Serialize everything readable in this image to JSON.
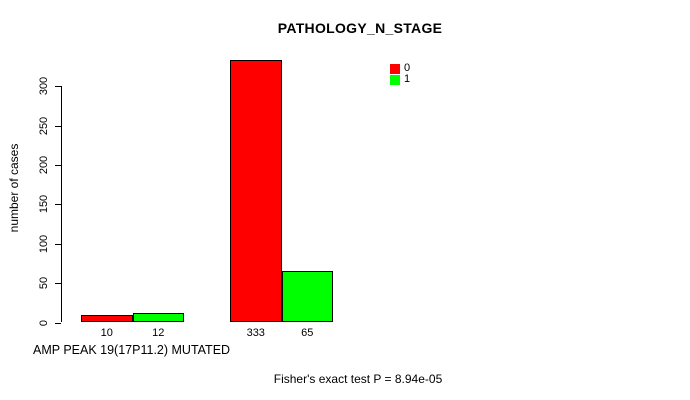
{
  "chart_data": {
    "type": "bar",
    "title": "PATHOLOGY_N_STAGE",
    "ylabel": "number of cases",
    "xlabel": "AMP PEAK 19(17P11.2) MUTATED",
    "annotation": "Fisher's exact test P = 8.94e-05",
    "yticks": [
      0,
      50,
      100,
      150,
      200,
      250,
      300
    ],
    "ylim": [
      0,
      333
    ],
    "grid": false,
    "categories": [
      "",
      ""
    ],
    "series": [
      {
        "name": "0",
        "color": "#ff0000",
        "values": [
          10,
          333
        ]
      },
      {
        "name": "1",
        "color": "#00ff00",
        "values": [
          12,
          65
        ]
      }
    ],
    "value_labels_under_bars": [
      [
        "10",
        "12"
      ],
      [
        "333",
        "65"
      ]
    ],
    "legend": {
      "position": "top-right-inside",
      "entries": [
        {
          "name": "0",
          "color": "#ff0000"
        },
        {
          "name": "1",
          "color": "#00ff00"
        }
      ]
    }
  },
  "colors": {
    "background": "#ffffff",
    "axis": "#000000",
    "text": "#000000",
    "bar_border": "#000000"
  }
}
